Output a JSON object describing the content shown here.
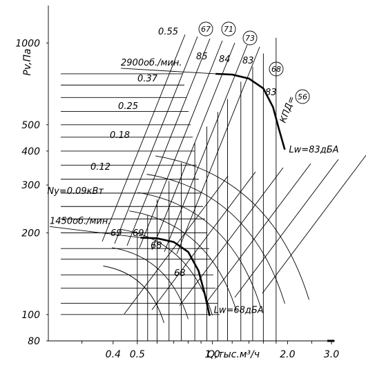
{
  "chart_data": {
    "type": "line",
    "xlabel": "Q,тыс.м³/ч",
    "ylabel": "Pv,Па",
    "x_scale": "log",
    "y_scale": "log",
    "xlim": [
      0.22,
      3.0
    ],
    "ylim": [
      80,
      1350
    ],
    "x_ticks": [
      {
        "v": 0.4,
        "label": "0.4"
      },
      {
        "v": 0.5,
        "label": "0.5"
      },
      {
        "v": 1.0,
        "label": "1.0"
      },
      {
        "v": 2.0,
        "label": "2.0"
      },
      {
        "v": 3.0,
        "label": "3.0"
      }
    ],
    "y_ticks": [
      {
        "v": 80,
        "label": "80"
      },
      {
        "v": 100,
        "label": "100"
      },
      {
        "v": 200,
        "label": "200"
      },
      {
        "v": 300,
        "label": "300"
      },
      {
        "v": 400,
        "label": "400"
      },
      {
        "v": 500,
        "label": "500"
      },
      {
        "v": 1000,
        "label": "1000"
      }
    ],
    "series": [
      {
        "name": "2900об./мин.",
        "sound_label": "Lw=83дБА",
        "points": [
          [
            1.03,
            770
          ],
          [
            1.2,
            765
          ],
          [
            1.4,
            740
          ],
          [
            1.6,
            680
          ],
          [
            1.75,
            580
          ],
          [
            1.85,
            480
          ],
          [
            1.95,
            405
          ]
        ]
      },
      {
        "name": "1450об./мин.",
        "sound_label": "Lw=68дБА",
        "points": [
          [
            0.515,
            192
          ],
          [
            0.6,
            191
          ],
          [
            0.7,
            185
          ],
          [
            0.8,
            170
          ],
          [
            0.88,
            145
          ],
          [
            0.93,
            120
          ],
          [
            0.975,
            99
          ]
        ]
      }
    ],
    "power_labels": [
      "Ny=0.09кВт",
      "0.12",
      "0.18",
      "0.25",
      "0.37",
      "0.55"
    ],
    "efficiency_labels": [
      "85",
      "84",
      "83",
      "83",
      "69",
      "69",
      "68",
      "68"
    ],
    "circled_labels": [
      "67",
      "71",
      "73",
      "68",
      "56"
    ],
    "efficiency_title": "КПД="
  }
}
